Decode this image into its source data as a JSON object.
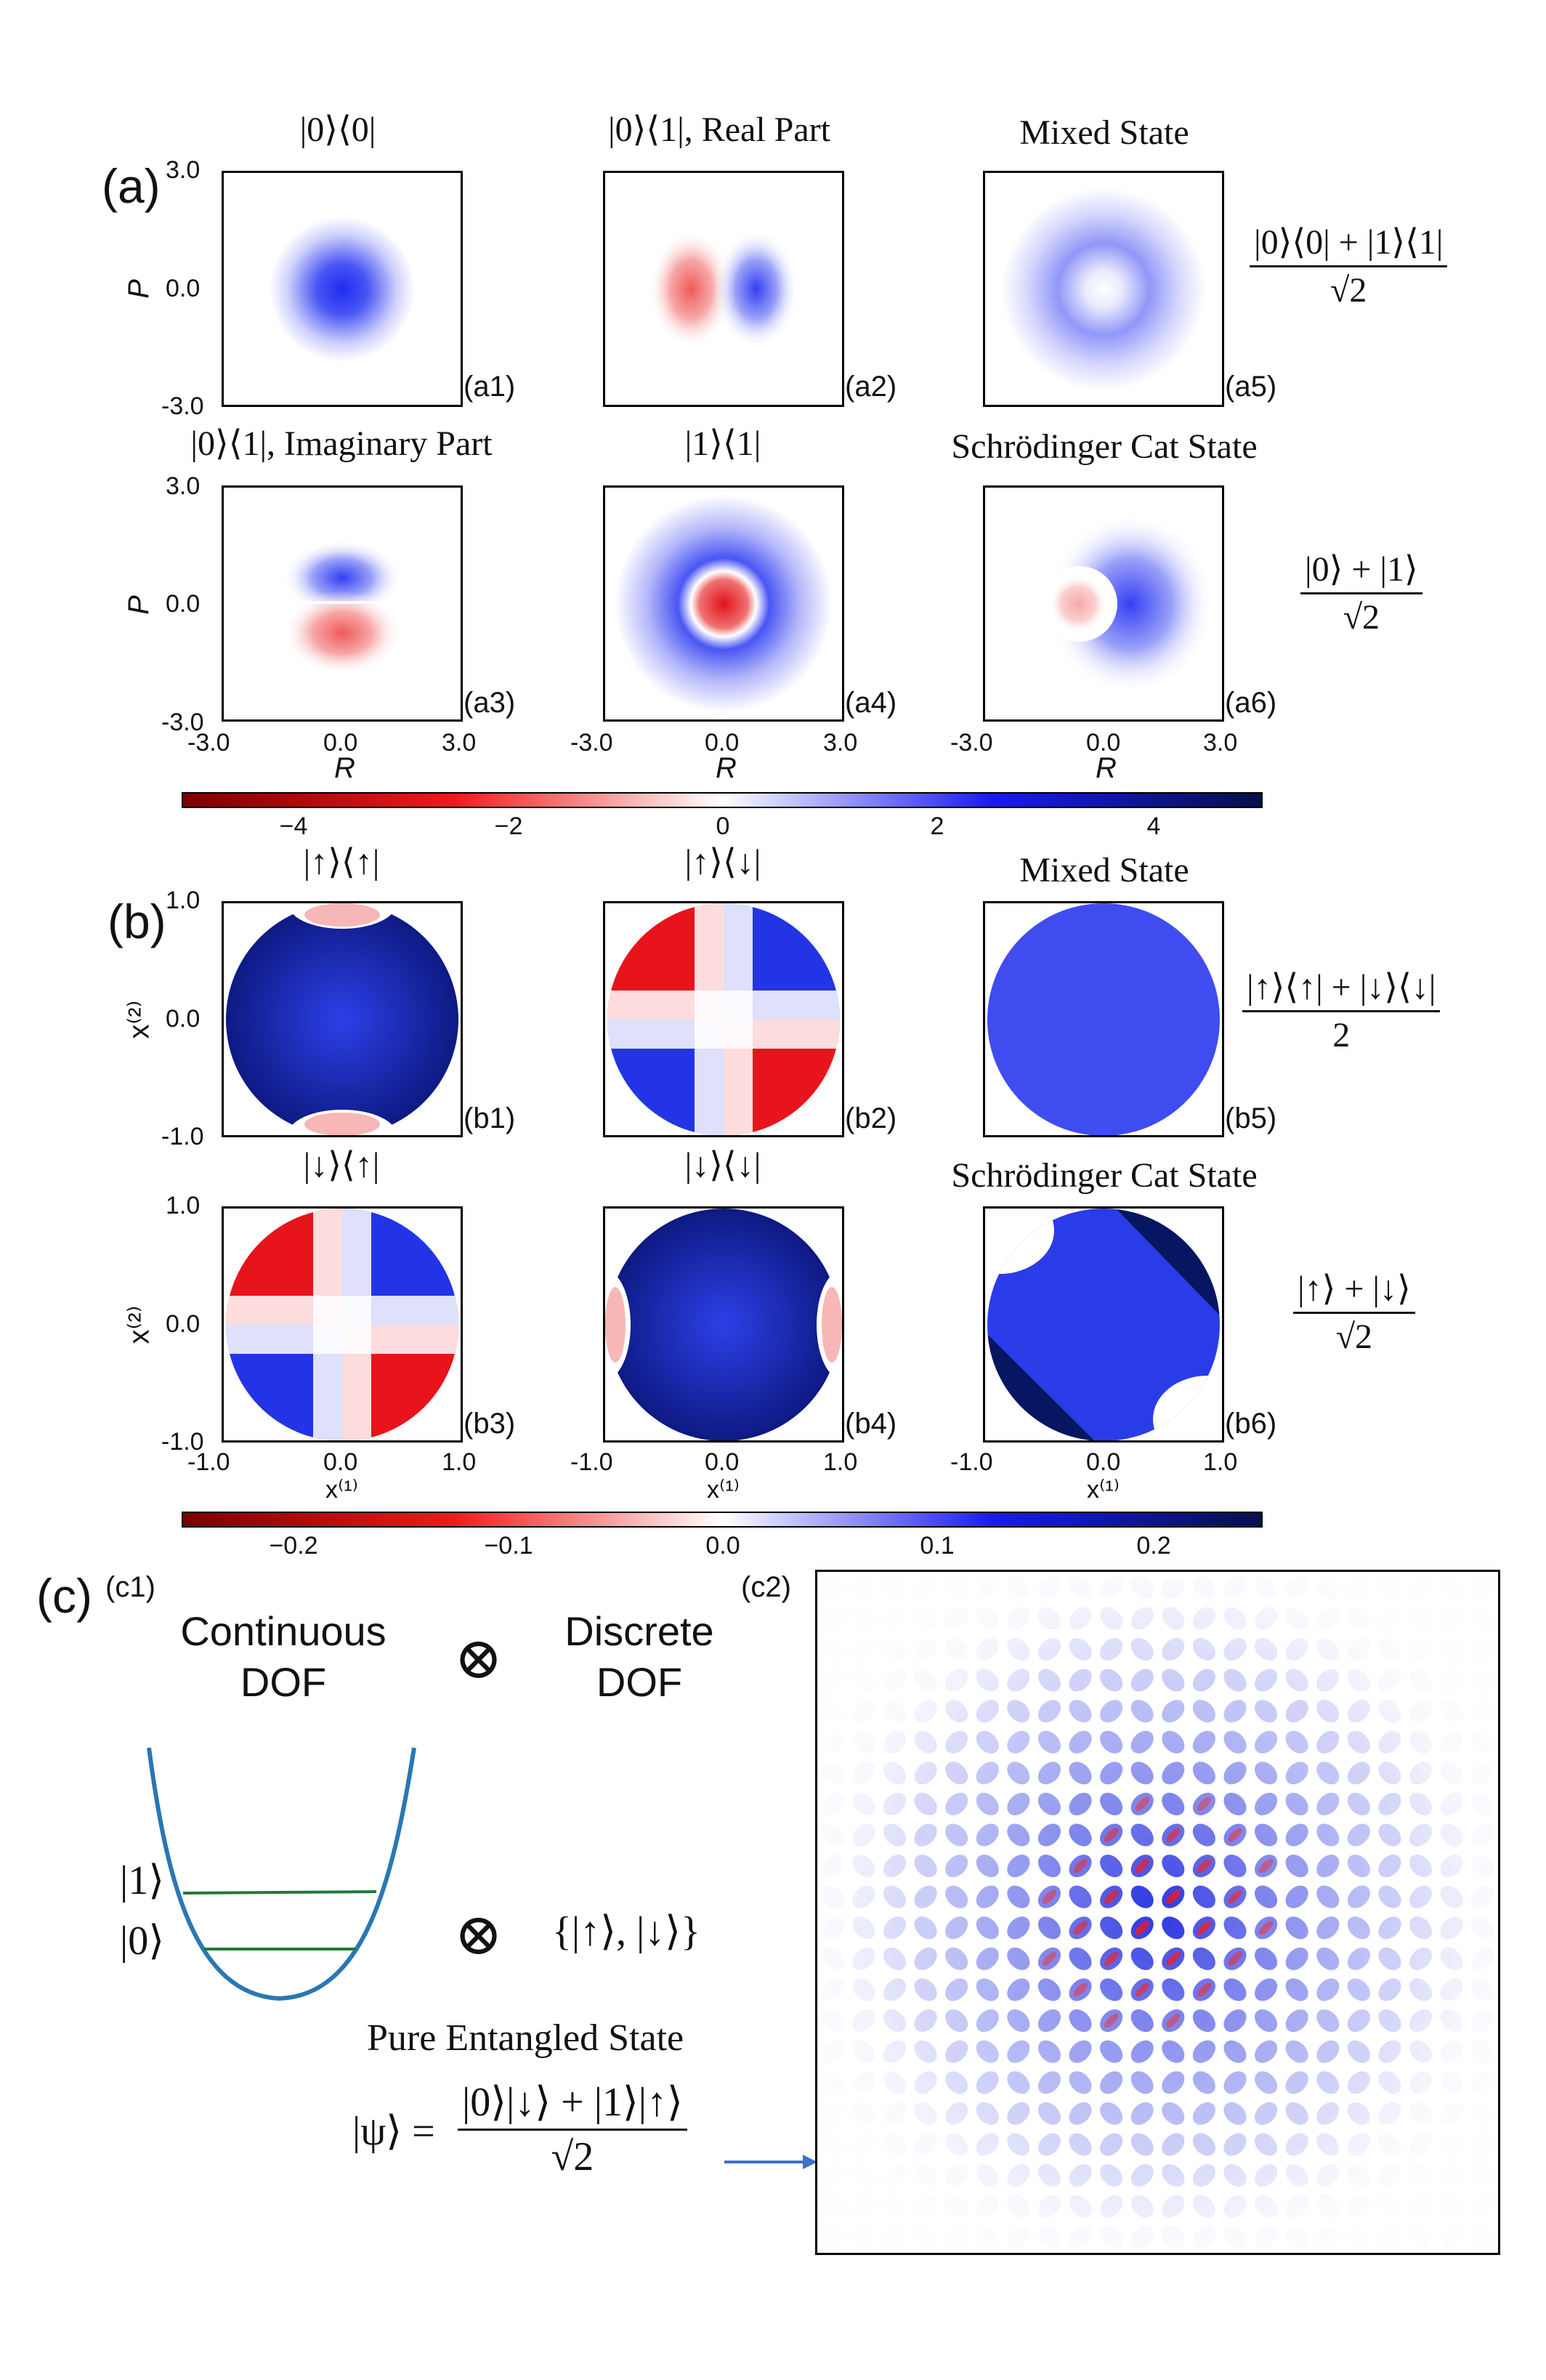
{
  "panel_a": {
    "letter": "(a)",
    "titles": [
      "|0⟩⟨0|",
      "|0⟩⟨1|, Real Part",
      "Mixed State",
      "|0⟩⟨1|, Imaginary Part",
      "|1⟩⟨1|",
      "Schrödinger Cat State"
    ],
    "sublabels": [
      "(a1)",
      "(a2)",
      "(a5)",
      "(a3)",
      "(a4)",
      "(a6)"
    ],
    "ylabel": "P",
    "xlabel": "R",
    "yticks": [
      "3.0",
      "0.0",
      "-3.0"
    ],
    "xticks": [
      "-3.0",
      "0.0",
      "3.0"
    ],
    "formula_mixed": {
      "num": "|0⟩⟨0| + |1⟩⟨1|",
      "den": "√2"
    },
    "formula_cat": {
      "num": "|0⟩ + |1⟩",
      "den": "√2"
    },
    "colorbar_ticks": [
      "−4",
      "−2",
      "0",
      "2",
      "4"
    ]
  },
  "panel_b": {
    "letter": "(b)",
    "titles": [
      "|↑⟩⟨↑|",
      "|↑⟩⟨↓|",
      "Mixed State",
      "|↓⟩⟨↑|",
      "|↓⟩⟨↓|",
      "Schrödinger Cat State"
    ],
    "sublabels": [
      "(b1)",
      "(b2)",
      "(b5)",
      "(b3)",
      "(b4)",
      "(b6)"
    ],
    "ylabel": "x⁽²⁾",
    "xlabel": "x⁽¹⁾",
    "yticks": [
      "1.0",
      "0.0",
      "-1.0"
    ],
    "xticks": [
      "-1.0",
      "0.0",
      "1.0"
    ],
    "formula_mixed": {
      "num": "|↑⟩⟨↑| + |↓⟩⟨↓|",
      "den": "2"
    },
    "formula_cat": {
      "num": "|↑⟩ + |↓⟩",
      "den": "√2"
    },
    "colorbar_ticks": [
      "−0.2",
      "−0.1",
      "0.0",
      "0.1",
      "0.2"
    ]
  },
  "panel_c": {
    "letter": "(c)",
    "c1": "(c1)",
    "c2": "(c2)",
    "continuous": [
      "Continuous",
      "DOF"
    ],
    "discrete": [
      "Discrete",
      "DOF"
    ],
    "otimes": "⊗",
    "level_1": "|1⟩",
    "level_0": "|0⟩",
    "spin_set": "{|↑⟩, |↓⟩}",
    "pure_label": "Pure Entangled State",
    "psi_lhs": "|ψ⟩ =",
    "psi_num": "|0⟩|↓⟩ + |1⟩|↑⟩",
    "psi_den": "√2"
  },
  "colors": {
    "deep_red": "#8b0000",
    "red": "#e8202a",
    "white": "#ffffff",
    "blue": "#2a35f0",
    "navy": "#0a1450",
    "curve": "#2a77b4",
    "levels": "#1f7a3a",
    "arrow": "#3a72c8"
  }
}
